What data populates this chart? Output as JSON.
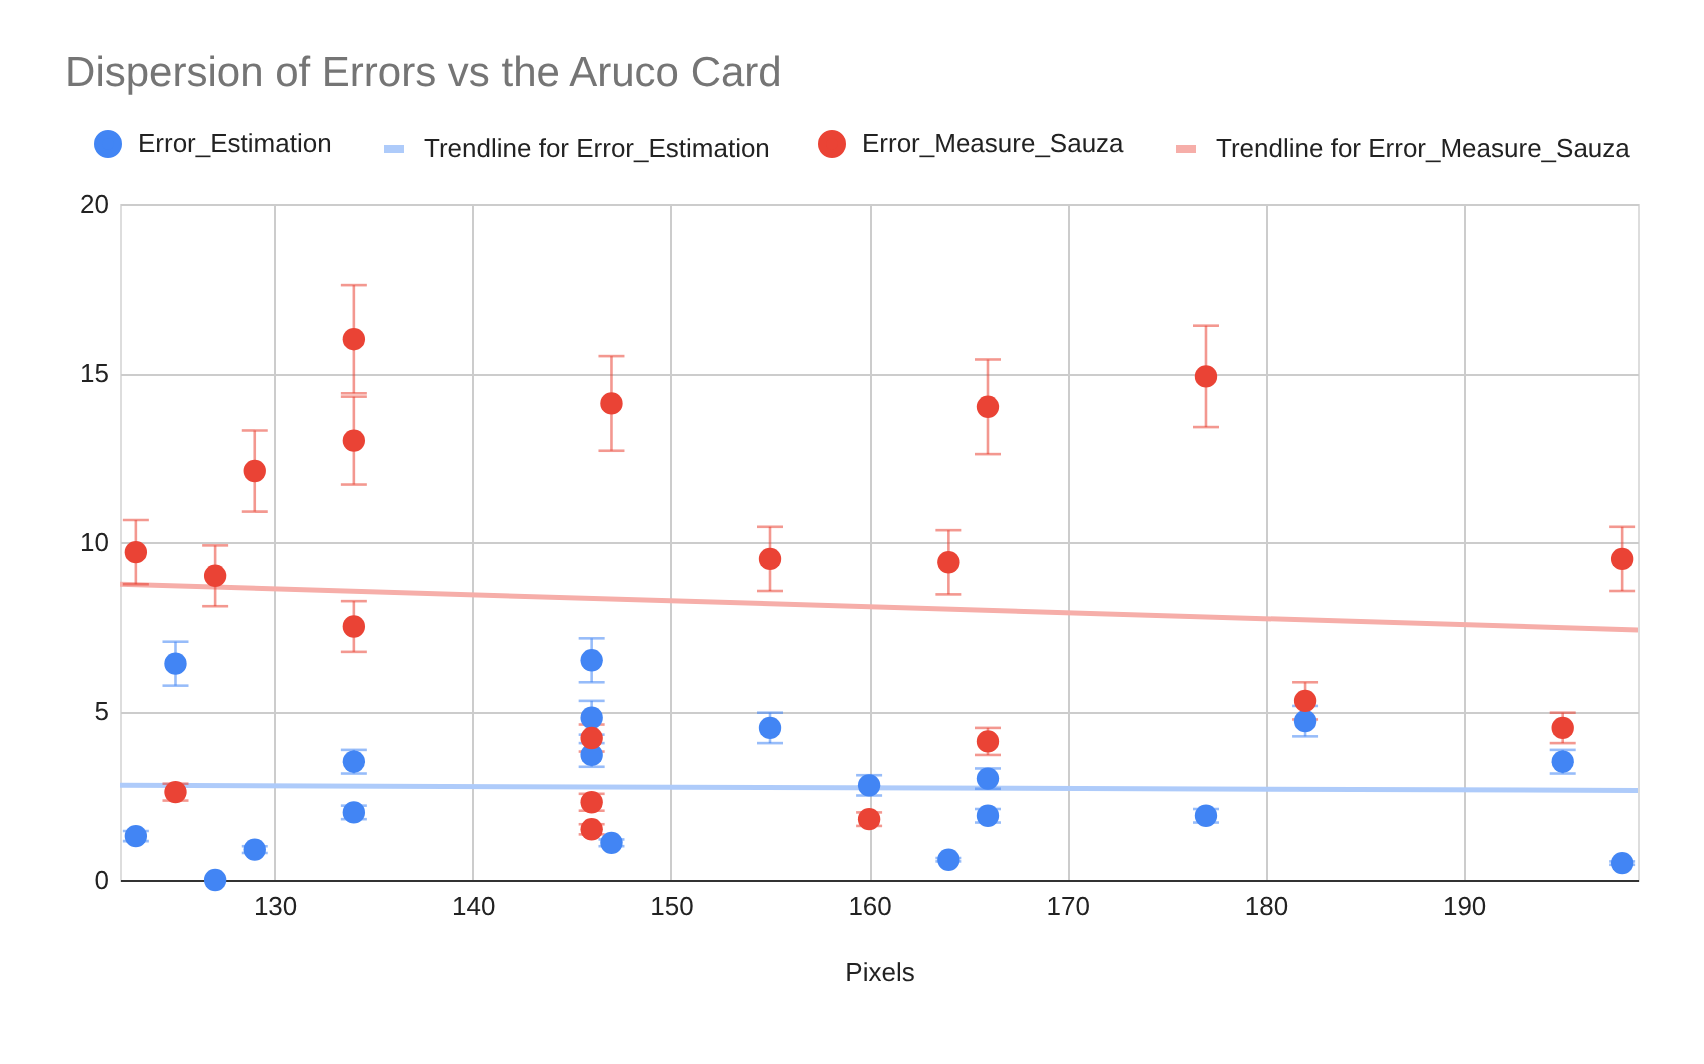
{
  "chart_data": {
    "type": "scatter",
    "title": "Dispersion of Errors vs the Aruco Card",
    "xlabel": "Pixels",
    "xlim": [
      122.2,
      198.8
    ],
    "ylim": [
      0,
      20
    ],
    "xticks": [
      130,
      140,
      150,
      160,
      170,
      180,
      190
    ],
    "yticks": [
      0,
      5,
      10,
      15,
      20
    ],
    "grid": true,
    "legend": "top",
    "marker": "circle",
    "series": [
      {
        "name": "Error_Estimation",
        "color": "#4285f4",
        "x": [
          123,
          125,
          127,
          129,
          134,
          134,
          146,
          146,
          146,
          147,
          155,
          160,
          164,
          166,
          166,
          177,
          182,
          195,
          198
        ],
        "values": [
          1.3,
          6.4,
          0.0,
          0.9,
          3.5,
          2.0,
          6.5,
          4.8,
          3.7,
          1.1,
          4.5,
          2.8,
          0.6,
          3.0,
          1.9,
          1.9,
          4.7,
          3.5,
          0.5
        ],
        "errors": [
          0.15,
          0.65,
          null,
          0.1,
          0.35,
          0.2,
          0.65,
          0.5,
          0.35,
          0.1,
          0.45,
          0.3,
          0.05,
          0.3,
          0.2,
          0.2,
          0.45,
          0.35,
          0.05
        ]
      },
      {
        "name": "Trendline for Error_Estimation",
        "type": "line",
        "marker": "none",
        "color": "#aecbfa",
        "x": [
          122.2,
          198.8
        ],
        "values": [
          2.8,
          2.65
        ]
      },
      {
        "name": "Error_Measure_Sauza",
        "color": "#ea4335",
        "x": [
          123,
          125,
          127,
          129,
          134,
          134,
          134,
          146,
          146,
          146,
          147,
          155,
          160,
          164,
          166,
          166,
          177,
          182,
          195,
          198
        ],
        "values": [
          9.7,
          2.6,
          9.0,
          12.1,
          16.0,
          13.0,
          7.5,
          4.2,
          2.3,
          1.5,
          14.1,
          9.5,
          1.8,
          9.4,
          14.0,
          4.1,
          14.9,
          5.3,
          4.5,
          9.5
        ],
        "errors": [
          0.95,
          0.25,
          0.9,
          1.2,
          1.6,
          1.3,
          0.75,
          0.4,
          0.25,
          0.15,
          1.4,
          0.95,
          0.2,
          0.95,
          1.4,
          0.4,
          1.5,
          0.55,
          0.45,
          0.95
        ]
      },
      {
        "name": "Trendline for Error_Measure_Sauza",
        "type": "line",
        "marker": "none",
        "color": "#f6aea9",
        "x": [
          122.2,
          198.8
        ],
        "values": [
          8.75,
          7.4
        ]
      }
    ]
  }
}
